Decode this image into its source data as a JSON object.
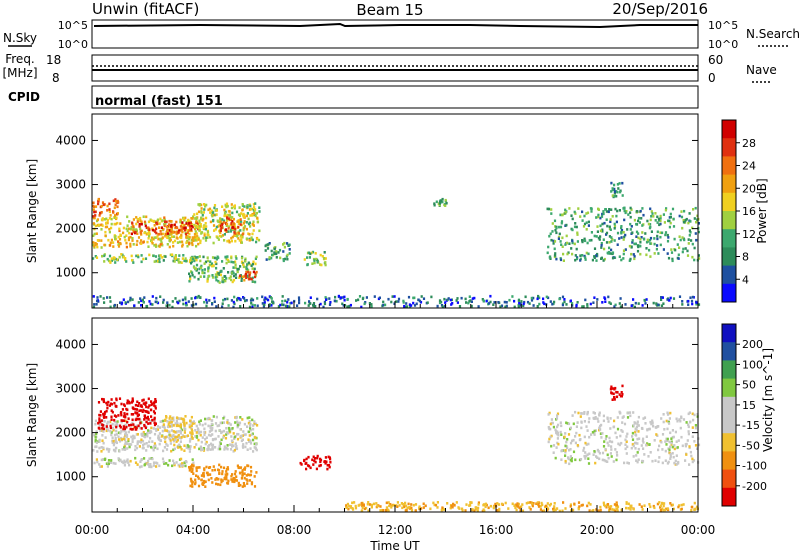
{
  "header": {
    "station": "Unwin (fitACF)",
    "beam": "Beam 15",
    "date": "20/Sep/2016"
  },
  "top_panels": {
    "nsky_label": "N.Sky",
    "nsky_tick_top": "10^5",
    "nsky_tick_bottom": "10^0",
    "nsearch_tick_top": "10^5",
    "nsearch_tick_bottom": "10^0",
    "nsearch_label": "N.Search",
    "freq_label": "Freq.",
    "freq_unit": "[MHz]",
    "freq_tick_top": "18",
    "freq_tick_bottom": "8",
    "nave_tick_top": "60",
    "nave_tick_bottom": "0",
    "nave_label": "Nave",
    "cpid_label": "CPID",
    "cpid_value": "normal (fast) 151"
  },
  "x_axis": {
    "label": "Time UT",
    "ticks": [
      "00:00",
      "04:00",
      "08:00",
      "12:00",
      "16:00",
      "20:00",
      "00:00"
    ]
  },
  "colors": {
    "power_scale": [
      "#0a0aff",
      "#1e50a0",
      "#2d8c5a",
      "#3ca86e",
      "#a0d040",
      "#f0d020",
      "#f0a010",
      "#f07010",
      "#e03010",
      "#d00000"
    ],
    "velocity_scale": [
      "#1010c0",
      "#2050a0",
      "#40a050",
      "#80c840",
      "#c8c8c8",
      "#c8c8c8",
      "#f0c030",
      "#f09010",
      "#f05010",
      "#e00000"
    ]
  },
  "chart_data": [
    {
      "type": "heatmap",
      "title": "",
      "xlabel": "Time UT",
      "ylabel": "Slant Range [km]",
      "ylim": [
        200,
        4600
      ],
      "yticks": [
        1000,
        2000,
        3000,
        4000
      ],
      "colorbar": {
        "label": "Power [dB]",
        "range": [
          0,
          32
        ],
        "ticks": [
          "4",
          "8",
          "12",
          "16",
          "20",
          "24",
          "28"
        ]
      },
      "regions": [
        {
          "t": [
            0.0,
            4.3
          ],
          "r": [
            1600,
            2300
          ],
          "value": 18
        },
        {
          "t": [
            1.5,
            4.2
          ],
          "r": [
            1900,
            2200
          ],
          "value": 26
        },
        {
          "t": [
            0.0,
            1.0
          ],
          "r": [
            2300,
            2700
          ],
          "value": 24
        },
        {
          "t": [
            0.0,
            4.0
          ],
          "r": [
            1250,
            1450
          ],
          "value": 14
        },
        {
          "t": [
            4.0,
            6.6
          ],
          "r": [
            1700,
            2600
          ],
          "value": 16
        },
        {
          "t": [
            5.0,
            6.0
          ],
          "r": [
            1900,
            2300
          ],
          "value": 26
        },
        {
          "t": [
            3.8,
            6.5
          ],
          "r": [
            800,
            1400
          ],
          "value": 12
        },
        {
          "t": [
            5.8,
            6.5
          ],
          "r": [
            850,
            1050
          ],
          "value": 26
        },
        {
          "t": [
            6.8,
            7.8
          ],
          "r": [
            1300,
            1700
          ],
          "value": 10
        },
        {
          "t": [
            8.3,
            9.3
          ],
          "r": [
            1200,
            1500
          ],
          "value": 14
        },
        {
          "t": [
            13.5,
            14.0
          ],
          "r": [
            2550,
            2700
          ],
          "value": 10
        },
        {
          "t": [
            18.0,
            24.0
          ],
          "r": [
            1300,
            2500
          ],
          "value": 10
        },
        {
          "t": [
            20.5,
            21.0
          ],
          "r": [
            2700,
            3100
          ],
          "value": 9
        },
        {
          "t": [
            0.0,
            24.0
          ],
          "r": [
            250,
            500
          ],
          "value": 6
        }
      ]
    },
    {
      "type": "heatmap",
      "title": "",
      "xlabel": "Time UT",
      "ylabel": "Slant Range [km]",
      "ylim": [
        200,
        4600
      ],
      "yticks": [
        1000,
        2000,
        3000,
        4000
      ],
      "colorbar": {
        "label": "Velocity [m s^-1]",
        "ticks": [
          "200",
          "100",
          "50",
          "15",
          "-15",
          "-50",
          "-100",
          "-200"
        ]
      },
      "regions": [
        {
          "t": [
            0.0,
            4.3
          ],
          "r": [
            1600,
            2300
          ],
          "value": 0
        },
        {
          "t": [
            0.2,
            2.5
          ],
          "r": [
            2100,
            2800
          ],
          "value": -250
        },
        {
          "t": [
            0.0,
            4.0
          ],
          "r": [
            1250,
            1450
          ],
          "value": 0
        },
        {
          "t": [
            3.8,
            6.5
          ],
          "r": [
            800,
            1300
          ],
          "value": -80
        },
        {
          "t": [
            4.2,
            6.5
          ],
          "r": [
            1600,
            2400
          ],
          "value": 0
        },
        {
          "t": [
            2.8,
            4.0
          ],
          "r": [
            1900,
            2400
          ],
          "value": -30
        },
        {
          "t": [
            8.2,
            9.4
          ],
          "r": [
            1200,
            1500
          ],
          "value": -250
        },
        {
          "t": [
            18.0,
            24.0
          ],
          "r": [
            1300,
            2500
          ],
          "value": 0
        },
        {
          "t": [
            20.5,
            21.0
          ],
          "r": [
            2700,
            3100
          ],
          "value": -250
        },
        {
          "t": [
            10.0,
            24.0
          ],
          "r": [
            250,
            450
          ],
          "value": -40
        }
      ]
    }
  ]
}
